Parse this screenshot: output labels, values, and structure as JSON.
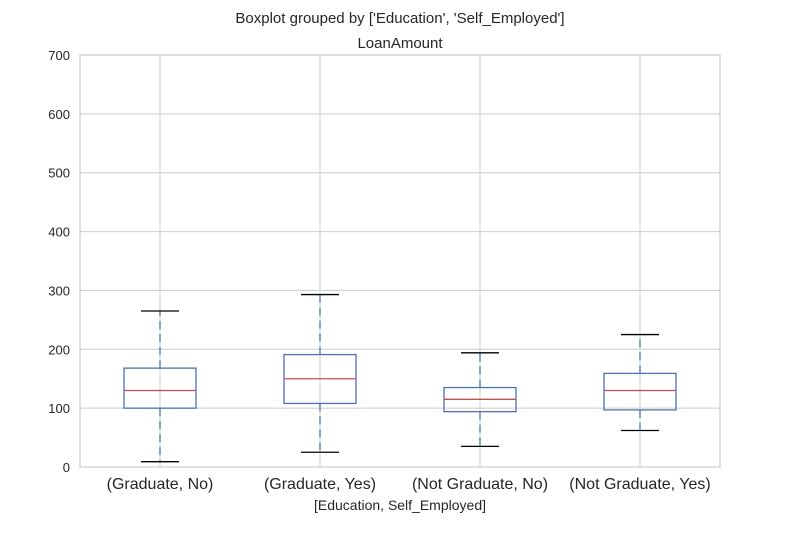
{
  "chart_data": {
    "type": "boxplot",
    "suptitle": "Boxplot grouped by ['Education', 'Self_Employed']",
    "title": "LoanAmount",
    "xlabel": "[Education, Self_Employed]",
    "ylabel": "",
    "ylim": [
      0,
      700
    ],
    "yticks": [
      0,
      100,
      200,
      300,
      400,
      500,
      600,
      700
    ],
    "grid": true,
    "categories": [
      "(Graduate, No)",
      "(Graduate, Yes)",
      "(Not Graduate, No)",
      "(Not Graduate, Yes)"
    ],
    "boxes": [
      {
        "whisker_low": 9,
        "q1": 100,
        "median": 130,
        "q3": 168,
        "whisker_high": 265
      },
      {
        "whisker_low": 25,
        "q1": 108,
        "median": 150,
        "q3": 191,
        "whisker_high": 293
      },
      {
        "whisker_low": 35,
        "q1": 94,
        "median": 115,
        "q3": 135,
        "whisker_high": 194
      },
      {
        "whisker_low": 62,
        "q1": 97,
        "median": 130,
        "q3": 159,
        "whisker_high": 225
      }
    ],
    "colors": {
      "box": "#4c72b0",
      "median": "#c44e52",
      "cap": "#000000",
      "grid": "#cccccc",
      "frame": "#cccccc"
    }
  }
}
